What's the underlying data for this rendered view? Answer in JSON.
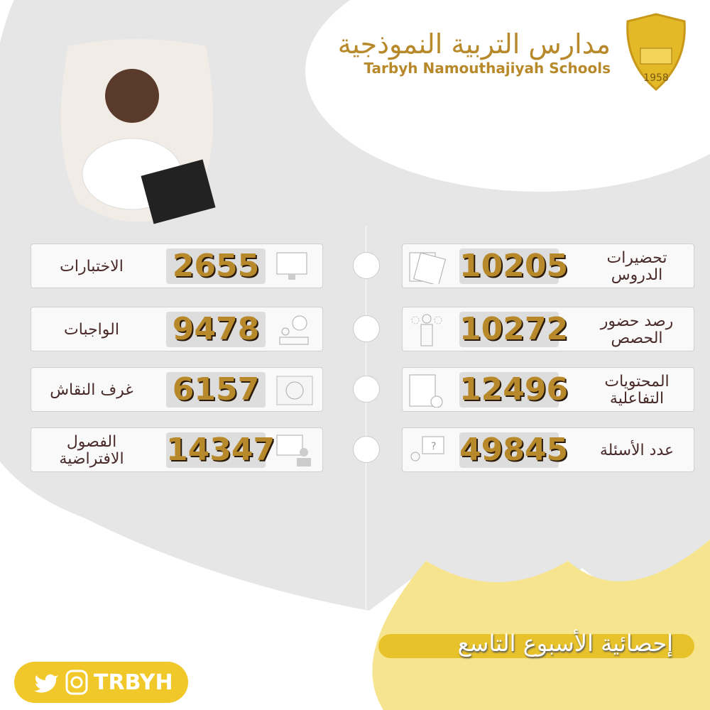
{
  "header": {
    "school_name_ar": "مدارس التربية النموذجية",
    "school_name_en": "Tarbyh Namouthajiyah Schools",
    "badge_year": "1958"
  },
  "stats_right": [
    {
      "label": "تحضيرات الدروس",
      "value": "10205",
      "icon": "documents-icon"
    },
    {
      "label": "رصد حضور الحصص",
      "value": "10272",
      "icon": "attendance-icon"
    },
    {
      "label": "المحتويات التفاعلية",
      "value": "12496",
      "icon": "tablet-touch-icon"
    },
    {
      "label": "عدد الأسئلة",
      "value": "49845",
      "icon": "question-user-icon"
    }
  ],
  "stats_left": [
    {
      "label": "الاختبارات",
      "value": "2655",
      "icon": "computer-test-icon"
    },
    {
      "label": "الواجبات",
      "value": "9478",
      "icon": "homework-clock-icon"
    },
    {
      "label": "غرف النقاش",
      "value": "6157",
      "icon": "discussion-icon"
    },
    {
      "label": "الفصول الافتراضية",
      "value": "14347",
      "icon": "virtual-class-icon"
    }
  ],
  "footer": {
    "title": "إحصائية الأسبوع التاسع",
    "handle": "TRBYH"
  },
  "colors": {
    "gold": "#b8892a",
    "label": "#4a2b2b",
    "yellow": "#f1c82a",
    "grey": "#e6e6e6"
  }
}
